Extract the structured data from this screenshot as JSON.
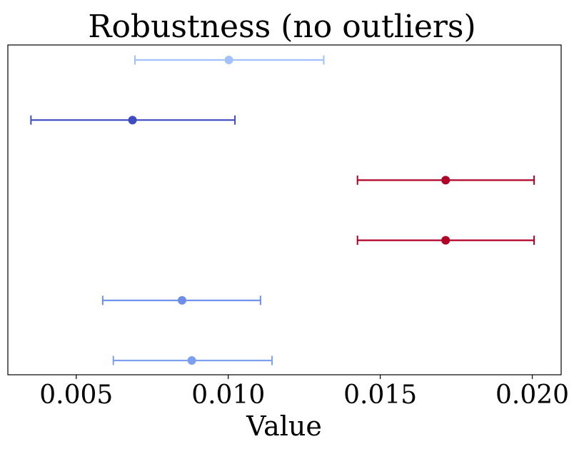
{
  "chart_data": {
    "type": "errorbar",
    "title": "Robustness (no outliers)",
    "xlabel": "Value",
    "ylabel": "",
    "xlim": [
      0.00275,
      0.02095
    ],
    "xticks": [
      {
        "value": 0.005,
        "label": "0.005"
      },
      {
        "value": 0.01,
        "label": "0.010"
      },
      {
        "value": 0.015,
        "label": "0.015"
      },
      {
        "value": 0.02,
        "label": "0.020"
      }
    ],
    "y_ticks_shown": false,
    "grid": false,
    "legend": "none",
    "points": [
      {
        "value": 0.01002,
        "lower": 0.00693,
        "upper": 0.01314,
        "color": "#a3c2fb"
      },
      {
        "value": 0.00685,
        "lower": 0.00351,
        "upper": 0.01022,
        "color": "#3e4cc2"
      },
      {
        "value": 0.01715,
        "lower": 0.01425,
        "upper": 0.02006,
        "color": "#b00026"
      },
      {
        "value": 0.01715,
        "lower": 0.01425,
        "upper": 0.02006,
        "color": "#b00026"
      },
      {
        "value": 0.00848,
        "lower": 0.00587,
        "upper": 0.01106,
        "color": "#6b8eea"
      },
      {
        "value": 0.0088,
        "lower": 0.00622,
        "upper": 0.01144,
        "color": "#7c9ff1"
      }
    ]
  }
}
